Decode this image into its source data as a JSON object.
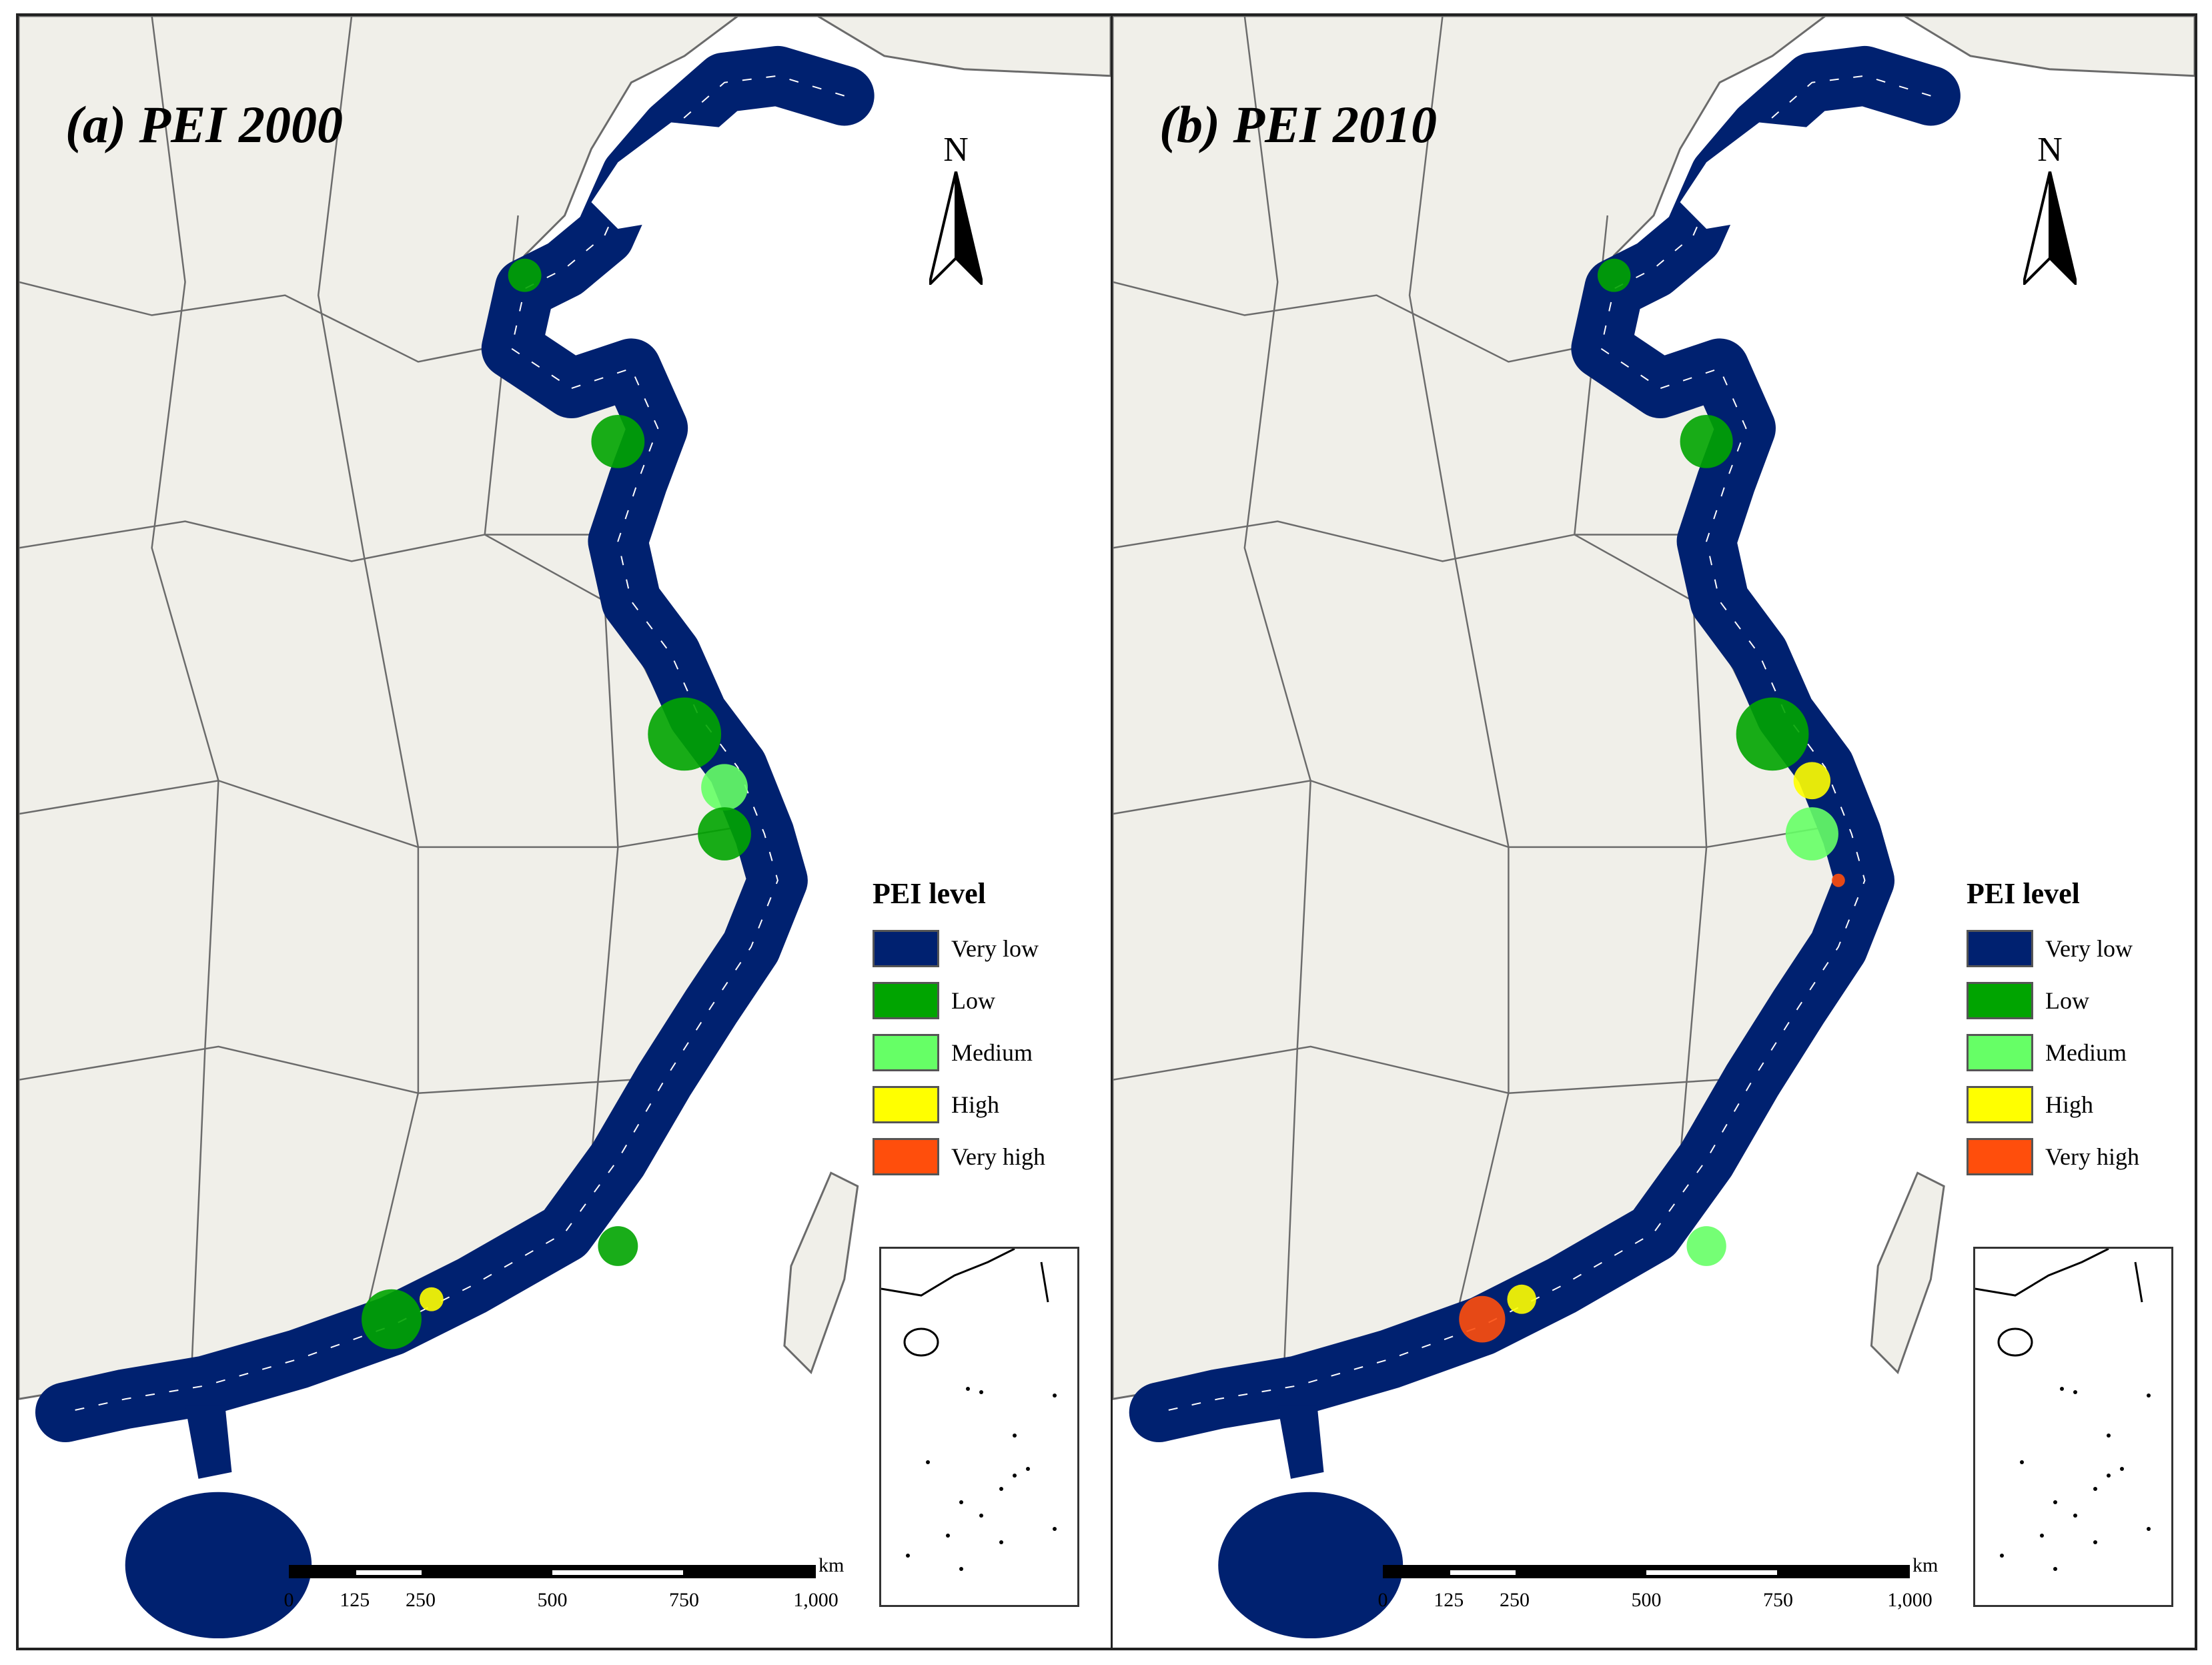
{
  "panels": [
    {
      "id": "a",
      "title": "(a) PEI 2000",
      "coastal_pattern": "mostly very low with low/medium clusters in the Yangtze and Pearl River deltas and Shandong"
    },
    {
      "id": "b",
      "title": "(b) PEI 2010",
      "coastal_pattern": "very low dominant with more medium/high/very high spots in the Pearl River and Yangtze deltas"
    }
  ],
  "north_arrow": {
    "label": "N",
    "icon": "north-arrow-icon"
  },
  "legend": {
    "title": "PEI level",
    "items": [
      {
        "label": "Very low",
        "color": "#002170"
      },
      {
        "label": "Low",
        "color": "#00a400"
      },
      {
        "label": "Medium",
        "color": "#66ff66"
      },
      {
        "label": "High",
        "color": "#ffff00"
      },
      {
        "label": "Very high",
        "color": "#ff4e0c"
      }
    ]
  },
  "scale": {
    "unit": "km",
    "ticks": [
      "0",
      "125",
      "250",
      "500",
      "750",
      "1,000"
    ],
    "values": [
      0,
      125,
      250,
      500,
      750,
      1000
    ]
  },
  "colors": {
    "land": "#f0efe9",
    "boundary": "#6b6b6b",
    "sea": "#ffffff",
    "district_line": "#ffffff"
  }
}
